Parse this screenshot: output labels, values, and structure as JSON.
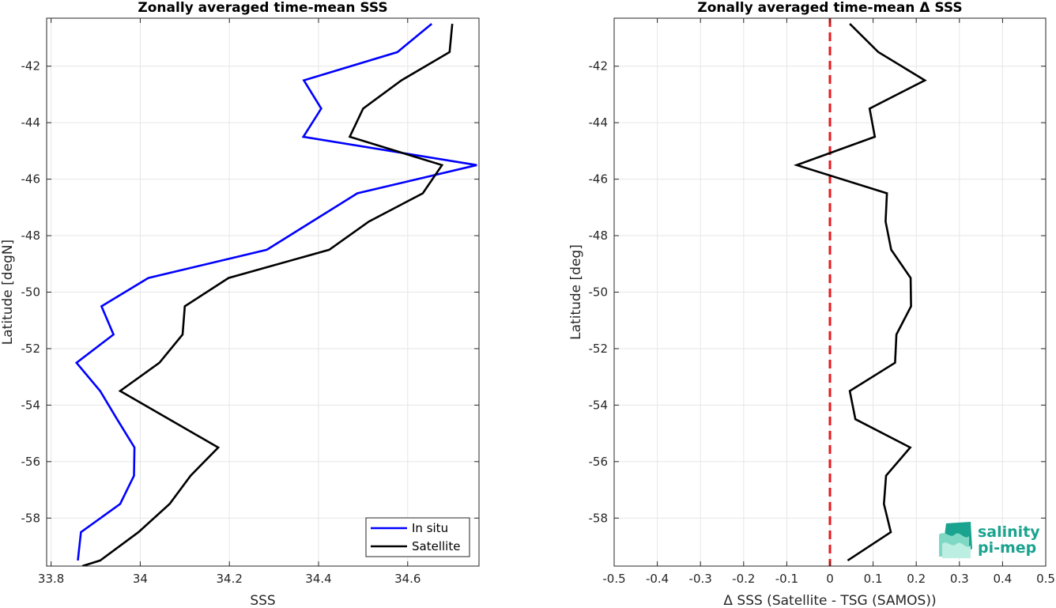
{
  "chart_data": [
    {
      "type": "line",
      "title": "Zonally averaged time-mean SSS",
      "xlabel": "SSS",
      "ylabel": "Latitude [degN]",
      "xlim": [
        33.79,
        34.76
      ],
      "ylim": [
        -59.7,
        -40.3
      ],
      "xticks": [
        33.8,
        34,
        34.2,
        34.4,
        34.6
      ],
      "xtick_labels": [
        "33.8",
        "34",
        "34.2",
        "34.4",
        "34.6"
      ],
      "yticks": [
        -58,
        -56,
        -54,
        -52,
        -50,
        -48,
        -46,
        -44,
        -42
      ],
      "ytick_labels": [
        "-58",
        "-56",
        "-54",
        "-52",
        "-50",
        "-48",
        "-46",
        "-44",
        "-42"
      ],
      "grid": true,
      "legend_placement": "bottom-right",
      "series": [
        {
          "name": "In situ",
          "color": "#0000ff",
          "x": [
            34.654,
            34.577,
            34.367,
            34.406,
            34.366,
            34.755,
            34.487,
            34.284,
            34.018,
            33.913,
            33.94,
            33.857,
            33.91,
            33.948,
            33.987,
            33.986,
            33.955,
            33.867,
            33.86
          ],
          "y": [
            -40.5,
            -41.5,
            -42.5,
            -43.5,
            -44.5,
            -45.5,
            -46.5,
            -48.5,
            -49.5,
            -50.5,
            -51.5,
            -52.5,
            -53.5,
            -54.5,
            -55.5,
            -56.5,
            -57.5,
            -58.5,
            -59.5
          ]
        },
        {
          "name": "Satellite",
          "color": "#000000",
          "x": [
            34.7,
            34.694,
            34.586,
            34.5,
            34.47,
            34.677,
            34.634,
            34.513,
            34.424,
            34.198,
            34.1,
            34.095,
            34.043,
            33.955,
            34.175,
            34.113,
            34.066,
            33.996,
            33.91,
            33.87
          ],
          "y": [
            -40.5,
            -41.5,
            -42.5,
            -43.5,
            -44.5,
            -45.5,
            -46.5,
            -47.5,
            -48.5,
            -49.5,
            -50.5,
            -51.5,
            -52.5,
            -53.5,
            -55.5,
            -56.5,
            -57.5,
            -58.5,
            -59.5,
            -59.7
          ]
        }
      ]
    },
    {
      "type": "line",
      "title": "Zonally averaged time-mean Δ SSS",
      "xlabel": "Δ SSS (Satellite - TSG (SAMOS))",
      "ylabel": "Latitude [deg]",
      "xlim": [
        -0.5,
        0.5
      ],
      "ylim": [
        -59.7,
        -40.3
      ],
      "xticks": [
        -0.5,
        -0.4,
        -0.3,
        -0.2,
        -0.1,
        0,
        0.1,
        0.2,
        0.3,
        0.4,
        0.5
      ],
      "xtick_labels": [
        "-0.5",
        "-0.4",
        "-0.3",
        "-0.2",
        "-0.1",
        "0",
        "0.1",
        "0.2",
        "0.3",
        "0.4",
        "0.5"
      ],
      "yticks": [
        -58,
        -56,
        -54,
        -52,
        -50,
        -48,
        -46,
        -44,
        -42
      ],
      "ytick_labels": [
        "-58",
        "-56",
        "-54",
        "-52",
        "-50",
        "-48",
        "-46",
        "-44",
        "-42"
      ],
      "grid": true,
      "reference_line": {
        "x": 0,
        "color": "#e8191c",
        "style": "dashed"
      },
      "series": [
        {
          "color": "#000000",
          "x": [
            0.046,
            0.112,
            0.22,
            0.092,
            0.104,
            -0.077,
            0.132,
            0.129,
            0.142,
            0.187,
            0.188,
            0.154,
            0.151,
            0.046,
            0.059,
            0.186,
            0.13,
            0.125,
            0.141,
            0.041
          ],
          "y": [
            -40.5,
            -41.5,
            -42.5,
            -43.5,
            -44.5,
            -45.5,
            -46.5,
            -47.5,
            -48.5,
            -49.5,
            -50.5,
            -51.5,
            -52.5,
            -53.5,
            -54.5,
            -55.5,
            -56.5,
            -57.5,
            -58.5,
            -59.5
          ]
        }
      ]
    }
  ],
  "logo": {
    "line1": "salinity",
    "line2": "pi-mep"
  }
}
